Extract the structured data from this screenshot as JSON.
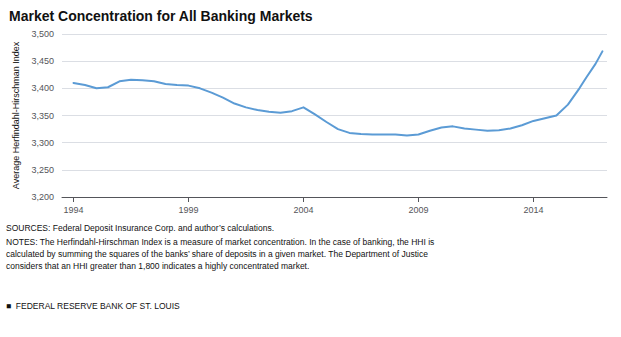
{
  "chart_data": {
    "type": "line",
    "title": "Market Concentration for All Banking Markets",
    "ylabel": "Average Herfindahl-Hirschman Index",
    "x": [
      1994,
      1994.5,
      1995,
      1995.5,
      1996,
      1996.5,
      1997,
      1997.5,
      1998,
      1998.5,
      1999,
      1999.5,
      2000,
      2000.5,
      2001,
      2001.5,
      2002,
      2002.5,
      2003,
      2003.5,
      2004,
      2004.5,
      2005,
      2005.5,
      2006,
      2006.5,
      2007,
      2007.5,
      2008,
      2008.5,
      2009,
      2009.5,
      2010,
      2010.5,
      2011,
      2011.5,
      2012,
      2012.5,
      2013,
      2013.5,
      2014,
      2014.5,
      2015,
      2015.5,
      2016,
      2016.3,
      2016.7,
      2017
    ],
    "values": [
      3410,
      3406,
      3400,
      3402,
      3413,
      3416,
      3415,
      3413,
      3408,
      3406,
      3405,
      3400,
      3392,
      3383,
      3372,
      3365,
      3360,
      3357,
      3355,
      3358,
      3365,
      3352,
      3338,
      3325,
      3318,
      3316,
      3315,
      3315,
      3315,
      3313,
      3315,
      3322,
      3328,
      3330,
      3326,
      3324,
      3322,
      3323,
      3326,
      3332,
      3340,
      3345,
      3350,
      3370,
      3400,
      3420,
      3445,
      3468
    ],
    "color": "#5b9bd5",
    "xlim": [
      1993.5,
      2017.2
    ],
    "xticks": [
      1994,
      1999,
      2004,
      2009,
      2014
    ],
    "ylim": [
      3200,
      3500
    ],
    "yticks": [
      {
        "value": 3200,
        "label": "3,200"
      },
      {
        "value": 3250,
        "label": "3,250"
      },
      {
        "value": 3300,
        "label": "3,300"
      },
      {
        "value": 3350,
        "label": "3,350"
      },
      {
        "value": 3400,
        "label": "3,400"
      },
      {
        "value": 3450,
        "label": "3,450"
      },
      {
        "value": 3500,
        "label": "3,500"
      }
    ],
    "grid": true,
    "annotations": [
      "SOURCES: Federal Deposit Insurance Corp. and author’s calculations.",
      "NOTES: The Herfindahl-Hirschman Index is a measure of market concentration. In the case of banking, the HHI is\ncalculated by summing the squares of the banks’ share of deposits in a given market. The Department of Justice\nconsiders that an HHI greater than 1,800 indicates a highly concentrated market.",
      "■  FEDERAL RESERVE BANK OF ST. LOUIS"
    ]
  }
}
